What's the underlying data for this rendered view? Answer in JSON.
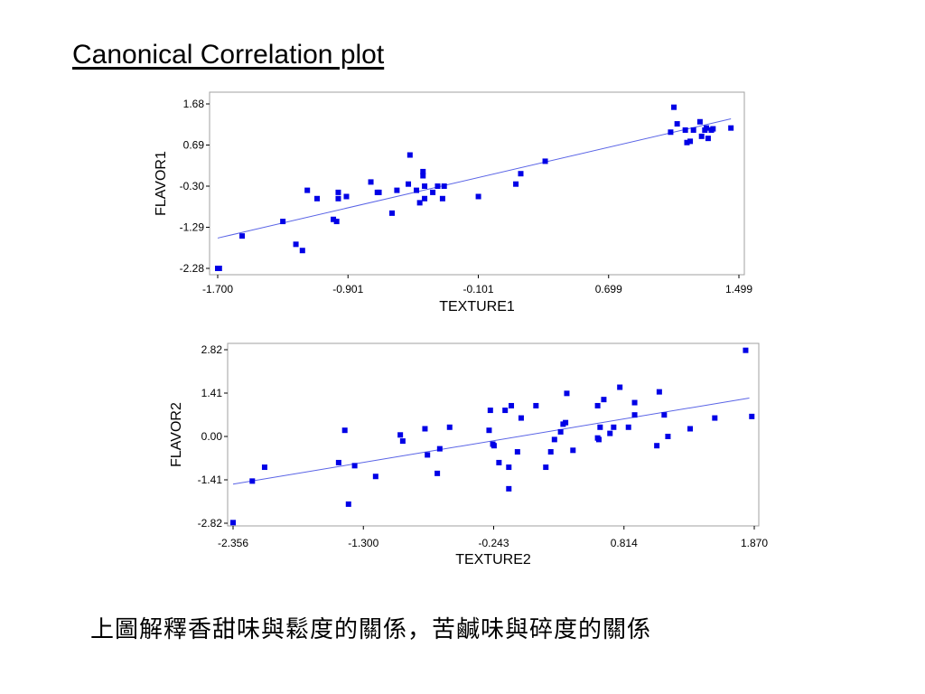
{
  "slide": {
    "title": "Canonical Correlation plot",
    "caption": "上圖解釋香甜味與鬆度的關係，苦鹹味與碎度的關係"
  },
  "colors": {
    "points": "#0000e6",
    "fit_line": "#5a64e6",
    "frame": "#a0a0a0",
    "text": "#000000"
  },
  "chart_data": [
    {
      "type": "scatter",
      "title": "",
      "xlabel": "TEXTURE1",
      "ylabel": "FLAVOR1",
      "xlim": [
        -1.7,
        1.499
      ],
      "ylim": [
        -2.28,
        1.68
      ],
      "xticks": [
        "-1.700",
        "-0.901",
        "-0.101",
        "0.699",
        "1.499"
      ],
      "yticks": [
        "1.68",
        "0.69",
        "-0.30",
        "-1.29",
        "-2.28"
      ],
      "fit_line": [
        [
          -1.7,
          -1.55
        ],
        [
          1.45,
          1.32
        ]
      ],
      "points": [
        [
          -1.7,
          -2.28
        ],
        [
          -1.69,
          -2.28
        ],
        [
          -1.55,
          -1.5
        ],
        [
          -1.3,
          -1.15
        ],
        [
          -1.22,
          -1.7
        ],
        [
          -1.18,
          -1.85
        ],
        [
          -1.15,
          -0.4
        ],
        [
          -1.09,
          -0.6
        ],
        [
          -0.99,
          -1.1
        ],
        [
          -0.97,
          -1.15
        ],
        [
          -0.96,
          -0.6
        ],
        [
          -0.96,
          -0.45
        ],
        [
          -0.91,
          -0.55
        ],
        [
          -0.76,
          -0.2
        ],
        [
          -0.72,
          -0.45
        ],
        [
          -0.71,
          -0.45
        ],
        [
          -0.63,
          -0.95
        ],
        [
          -0.6,
          -0.4
        ],
        [
          -0.53,
          -0.25
        ],
        [
          -0.52,
          0.45
        ],
        [
          -0.48,
          -0.4
        ],
        [
          -0.46,
          -0.7
        ],
        [
          -0.44,
          0.05
        ],
        [
          -0.44,
          -0.05
        ],
        [
          -0.43,
          -0.6
        ],
        [
          -0.43,
          -0.3
        ],
        [
          -0.38,
          -0.45
        ],
        [
          -0.35,
          -0.3
        ],
        [
          -0.32,
          -0.6
        ],
        [
          -0.31,
          -0.3
        ],
        [
          -0.1,
          -0.55
        ],
        [
          0.13,
          -0.25
        ],
        [
          0.16,
          0.0
        ],
        [
          0.31,
          0.3
        ],
        [
          1.08,
          1.0
        ],
        [
          1.1,
          1.6
        ],
        [
          1.12,
          1.2
        ],
        [
          1.17,
          1.05
        ],
        [
          1.18,
          0.75
        ],
        [
          1.2,
          0.78
        ],
        [
          1.22,
          1.05
        ],
        [
          1.26,
          1.25
        ],
        [
          1.27,
          0.9
        ],
        [
          1.29,
          1.05
        ],
        [
          1.3,
          1.1
        ],
        [
          1.31,
          0.85
        ],
        [
          1.33,
          1.05
        ],
        [
          1.34,
          1.08
        ],
        [
          1.45,
          1.1
        ]
      ]
    },
    {
      "type": "scatter",
      "title": "",
      "xlabel": "TEXTURE2",
      "ylabel": "FLAVOR2",
      "xlim": [
        -2.356,
        1.87
      ],
      "ylim": [
        -2.82,
        2.82
      ],
      "xticks": [
        "-2.356",
        "-1.300",
        "-0.243",
        "0.814",
        "1.870"
      ],
      "yticks": [
        "2.82",
        "1.41",
        "0.00",
        "-1.41",
        "-2.82"
      ],
      "fit_line": [
        [
          -2.356,
          -1.55
        ],
        [
          1.83,
          1.25
        ]
      ],
      "points": [
        [
          -2.356,
          -2.8
        ],
        [
          -2.2,
          -1.45
        ],
        [
          -2.1,
          -1.0
        ],
        [
          -1.5,
          -0.85
        ],
        [
          -1.45,
          0.2
        ],
        [
          -1.42,
          -2.2
        ],
        [
          -1.37,
          -0.95
        ],
        [
          -1.2,
          -1.3
        ],
        [
          -1.0,
          0.05
        ],
        [
          -0.98,
          -0.15
        ],
        [
          -0.8,
          0.25
        ],
        [
          -0.78,
          -0.6
        ],
        [
          -0.7,
          -1.2
        ],
        [
          -0.68,
          -0.4
        ],
        [
          -0.6,
          0.3
        ],
        [
          -0.28,
          0.2
        ],
        [
          -0.27,
          0.85
        ],
        [
          -0.25,
          -0.25
        ],
        [
          -0.24,
          -0.3
        ],
        [
          -0.2,
          -0.85
        ],
        [
          -0.15,
          0.85
        ],
        [
          -0.12,
          -1.0
        ],
        [
          -0.12,
          -1.7
        ],
        [
          -0.1,
          1.0
        ],
        [
          -0.05,
          -0.5
        ],
        [
          -0.02,
          0.6
        ],
        [
          0.1,
          1.0
        ],
        [
          0.18,
          -1.0
        ],
        [
          0.22,
          -0.5
        ],
        [
          0.25,
          -0.1
        ],
        [
          0.3,
          0.15
        ],
        [
          0.32,
          0.4
        ],
        [
          0.34,
          0.45
        ],
        [
          0.35,
          1.4
        ],
        [
          0.4,
          -0.45
        ],
        [
          0.6,
          1.0
        ],
        [
          0.6,
          -0.05
        ],
        [
          0.61,
          -0.1
        ],
        [
          0.62,
          0.3
        ],
        [
          0.65,
          1.2
        ],
        [
          0.7,
          0.1
        ],
        [
          0.73,
          0.3
        ],
        [
          0.78,
          1.6
        ],
        [
          0.85,
          0.3
        ],
        [
          0.9,
          0.7
        ],
        [
          0.9,
          1.1
        ],
        [
          1.08,
          -0.3
        ],
        [
          1.1,
          1.45
        ],
        [
          1.14,
          0.7
        ],
        [
          1.17,
          0.0
        ],
        [
          1.35,
          0.25
        ],
        [
          1.55,
          0.6
        ],
        [
          1.8,
          2.8
        ],
        [
          1.85,
          0.65
        ]
      ]
    }
  ]
}
